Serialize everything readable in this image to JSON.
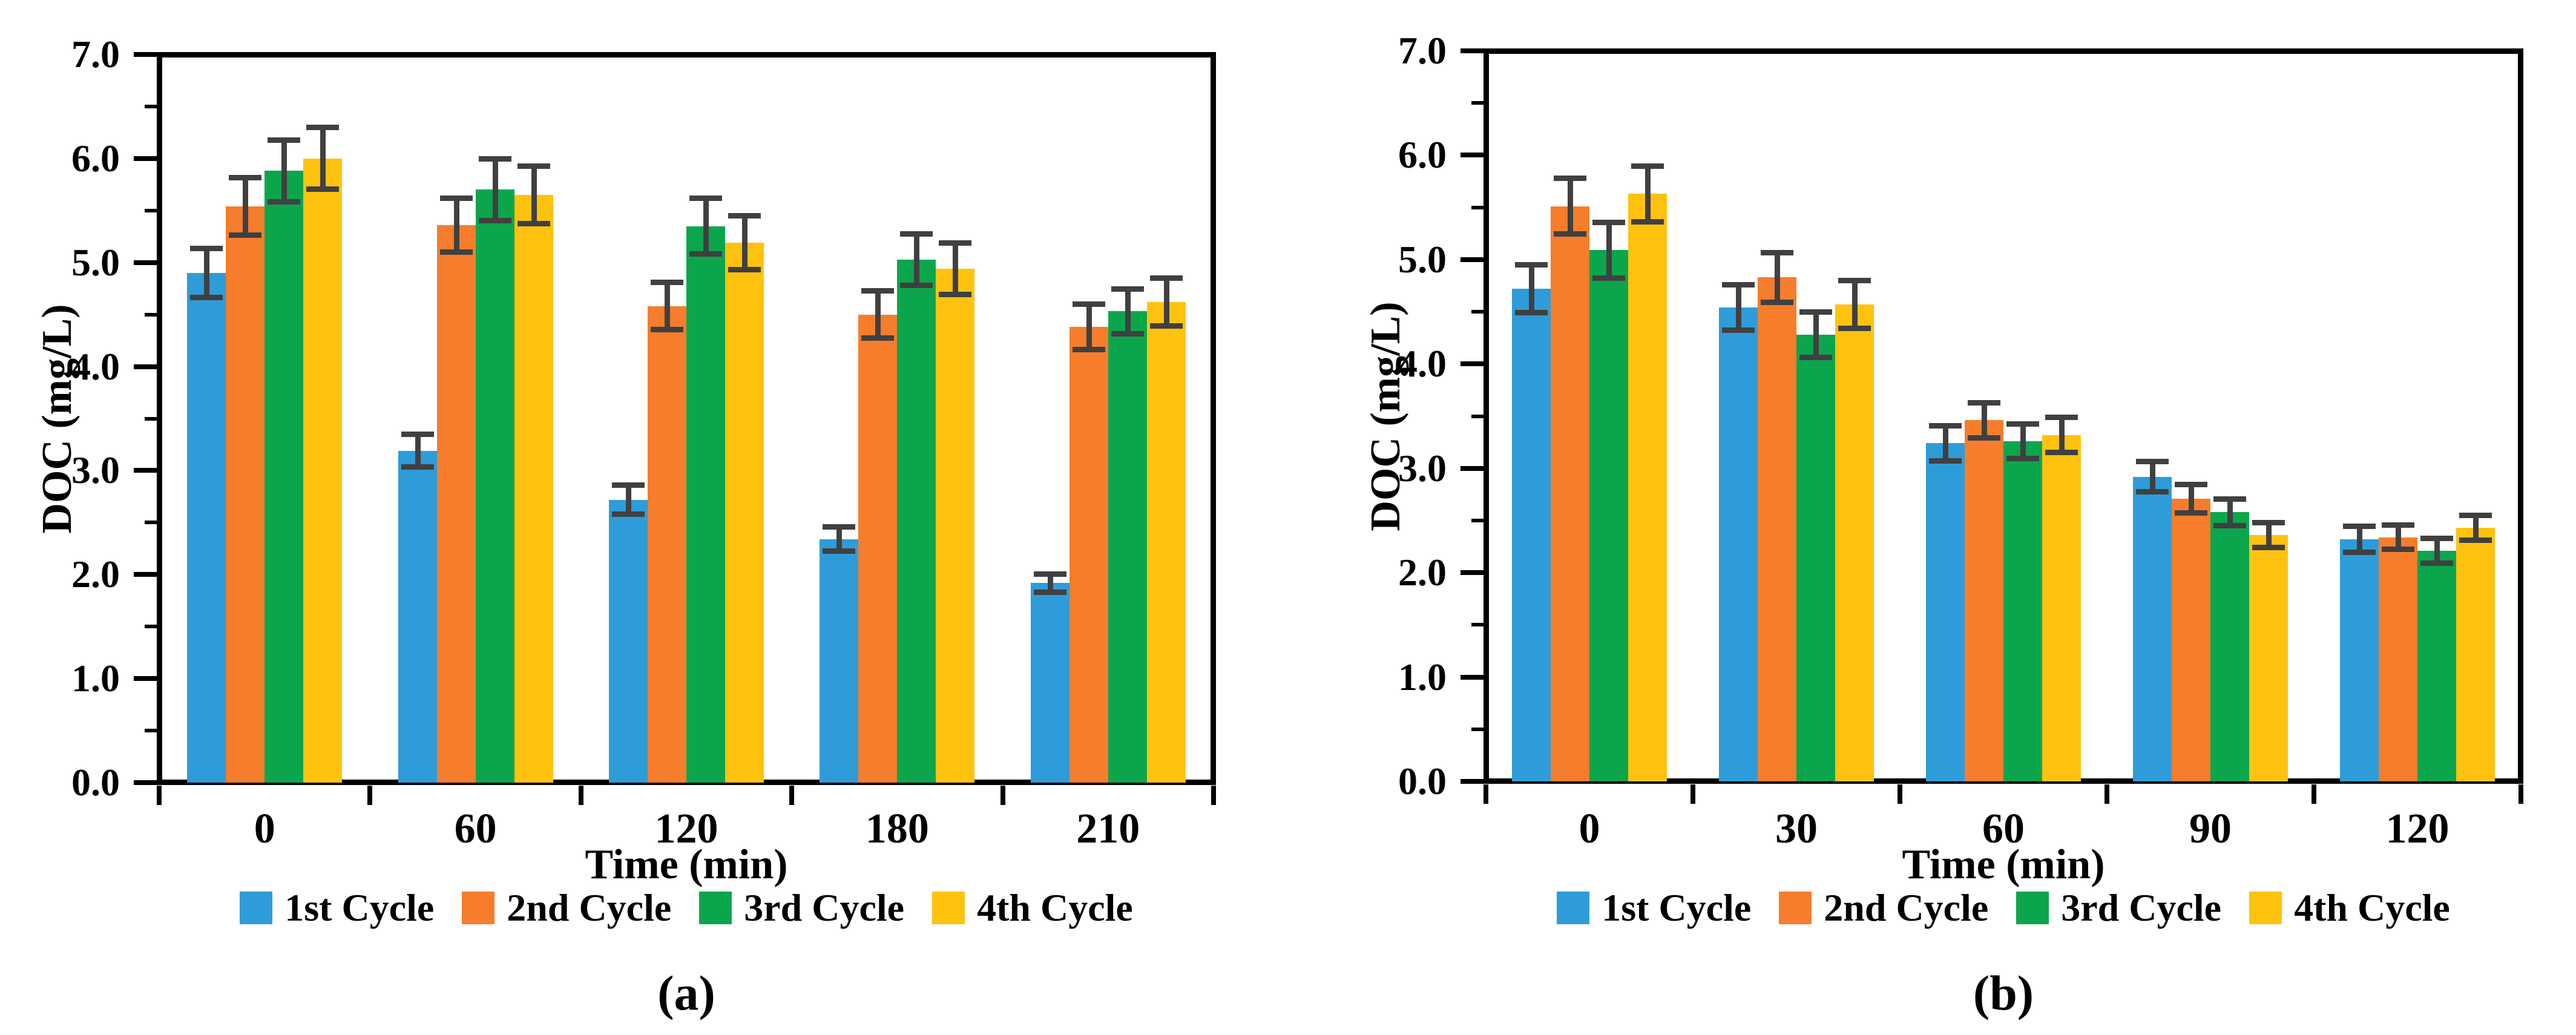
{
  "figure": {
    "background": "#ffffff"
  },
  "palette": {
    "cycle1_blue": "#2E9CD9",
    "cycle2_orange": "#F67D2C",
    "cycle3_green": "#0BA64C",
    "cycle4_yellow": "#FFC20E",
    "error_bar": "#404040",
    "axis": "#000000"
  },
  "chart_data": [
    {
      "type": "bar",
      "title": "",
      "caption": "(a)",
      "xlabel": "Time (min)",
      "ylabel": "DOC (mg/L)",
      "ylim": [
        0.0,
        7.0
      ],
      "ytick_labels": [
        "0.0",
        "1.0",
        "2.0",
        "3.0",
        "4.0",
        "5.0",
        "6.0",
        "7.0"
      ],
      "ytick_minor_step": 0.5,
      "grid": "off",
      "legend_position": "bottom",
      "categories": [
        "0",
        "60",
        "120",
        "180",
        "210"
      ],
      "series": [
        {
          "name": "1st Cycle",
          "color": "#2E9CD9",
          "values": [
            4.9,
            3.19,
            2.72,
            2.34,
            1.92
          ],
          "errors": [
            0.24,
            0.16,
            0.14,
            0.12,
            0.09
          ]
        },
        {
          "name": "2nd Cycle",
          "color": "#F67D2C",
          "values": [
            5.54,
            5.36,
            4.58,
            4.5,
            4.38
          ],
          "errors": [
            0.28,
            0.26,
            0.23,
            0.23,
            0.22
          ]
        },
        {
          "name": "3rd Cycle",
          "color": "#0BA64C",
          "values": [
            5.88,
            5.7,
            5.35,
            5.03,
            4.53
          ],
          "errors": [
            0.3,
            0.3,
            0.27,
            0.25,
            0.22
          ]
        },
        {
          "name": "4th Cycle",
          "color": "#FFC20E",
          "values": [
            6.0,
            5.65,
            5.19,
            4.94,
            4.62
          ],
          "errors": [
            0.3,
            0.28,
            0.26,
            0.25,
            0.23
          ]
        }
      ]
    },
    {
      "type": "bar",
      "title": "",
      "caption": "(b)",
      "xlabel": "Time (min)",
      "ylabel": "DOC (mg/L)",
      "ylim": [
        0.0,
        7.0
      ],
      "ytick_labels": [
        "0.0",
        "1.0",
        "2.0",
        "3.0",
        "4.0",
        "5.0",
        "6.0",
        "7.0"
      ],
      "ytick_minor_step": 0.5,
      "grid": "off",
      "legend_position": "bottom",
      "categories": [
        "0",
        "30",
        "60",
        "90",
        "120"
      ],
      "series": [
        {
          "name": "1st Cycle",
          "color": "#2E9CD9",
          "values": [
            4.72,
            4.54,
            3.24,
            2.92,
            2.32
          ],
          "errors": [
            0.23,
            0.22,
            0.17,
            0.15,
            0.13
          ]
        },
        {
          "name": "2nd Cycle",
          "color": "#F67D2C",
          "values": [
            5.51,
            4.83,
            3.46,
            2.71,
            2.34
          ],
          "errors": [
            0.27,
            0.24,
            0.17,
            0.14,
            0.12
          ]
        },
        {
          "name": "3rd Cycle",
          "color": "#0BA64C",
          "values": [
            5.09,
            4.28,
            3.26,
            2.58,
            2.21
          ],
          "errors": [
            0.27,
            0.22,
            0.17,
            0.13,
            0.12
          ]
        },
        {
          "name": "4th Cycle",
          "color": "#FFC20E",
          "values": [
            5.63,
            4.57,
            3.32,
            2.36,
            2.43
          ],
          "errors": [
            0.27,
            0.23,
            0.17,
            0.12,
            0.12
          ]
        }
      ]
    }
  ]
}
